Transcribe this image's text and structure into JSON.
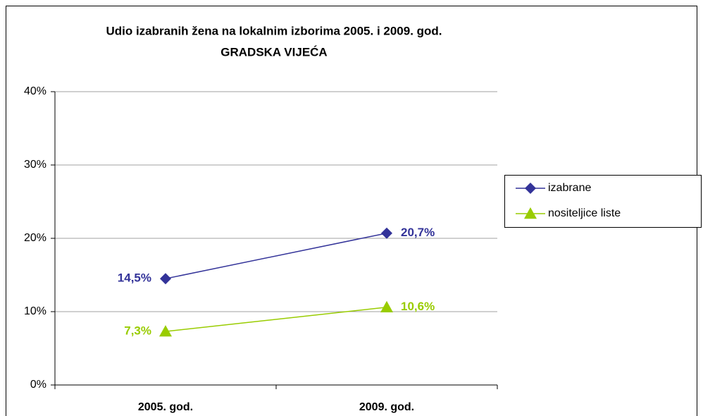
{
  "chart_data": {
    "type": "line",
    "title": "Udio izabranih žena na lokalnim izborima 2005. i 2009. god.",
    "subtitle": "GRADSKA VIJEĆA",
    "categories": [
      "2005. god.",
      "2009. god."
    ],
    "series": [
      {
        "name": "izabrane",
        "color": "#333399",
        "marker": "diamond",
        "values": [
          14.5,
          20.7
        ],
        "value_labels": [
          "14,5%",
          "20,7%"
        ]
      },
      {
        "name": "nositeljice liste",
        "color": "#99cc00",
        "marker": "triangle",
        "values": [
          7.3,
          10.6
        ],
        "value_labels": [
          "7,3%",
          "10,6%"
        ]
      }
    ],
    "ylim": [
      0,
      40
    ],
    "yticks": [
      {
        "value": 0,
        "label": "0%"
      },
      {
        "value": 10,
        "label": "10%"
      },
      {
        "value": 20,
        "label": "20%"
      },
      {
        "value": 30,
        "label": "30%"
      },
      {
        "value": 40,
        "label": "40%"
      }
    ],
    "grid": true,
    "legend": "right"
  }
}
